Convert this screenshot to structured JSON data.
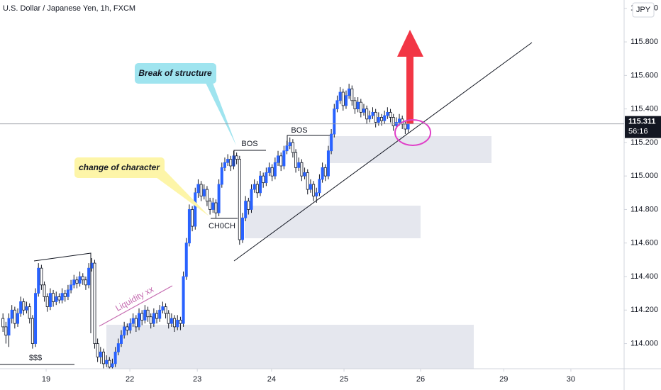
{
  "chart_data": {
    "type": "candlestick",
    "title": "U.S. Dollar / Japanese Yen, 1h, FXCM",
    "currency": "JPY",
    "up_color": "#2962ff",
    "down_color": "#ffffff",
    "ylim": [
      113.85,
      116.05
    ],
    "yticks": [
      {
        "value": 114.0,
        "label": "114.000"
      },
      {
        "value": 114.2,
        "label": "114.200"
      },
      {
        "value": 114.4,
        "label": "114.400"
      },
      {
        "value": 114.6,
        "label": "114.600"
      },
      {
        "value": 114.8,
        "label": "114.800"
      },
      {
        "value": 115.0,
        "label": "115.000"
      },
      {
        "value": 115.2,
        "label": "115.200"
      },
      {
        "value": 115.4,
        "label": "115.400"
      },
      {
        "value": 115.6,
        "label": "115.600"
      },
      {
        "value": 115.8,
        "label": "115.800"
      },
      {
        "value": 116.0,
        "label": "116.000"
      }
    ],
    "xlim": [
      -1,
      210
    ],
    "xticks": [
      {
        "value": 14.6,
        "label": "19"
      },
      {
        "value": 42.9,
        "label": "22"
      },
      {
        "value": 65.7,
        "label": "23"
      },
      {
        "value": 90.8,
        "label": "24"
      },
      {
        "value": 115.3,
        "label": "25"
      },
      {
        "value": 141.2,
        "label": "26"
      },
      {
        "value": 169.3,
        "label": "29"
      },
      {
        "value": 192.0,
        "label": "30"
      }
    ],
    "last_price": 115.311,
    "countdown": "56:16",
    "annotations": {
      "bos_callout": "Break of structure",
      "choch_callout": "change of character",
      "bos_1": "BOS",
      "bos_2": "BOS",
      "choch": "CH0CH",
      "liquidity": "Liquidity  xx",
      "equal_lows": "$$$"
    },
    "candles": [
      [
        114.15,
        114.18,
        114.07,
        114.1
      ],
      [
        114.1,
        114.13,
        114.0,
        114.05
      ],
      [
        114.05,
        114.18,
        113.98,
        114.15
      ],
      [
        114.15,
        114.23,
        114.12,
        114.2
      ],
      [
        114.2,
        114.22,
        114.09,
        114.12
      ],
      [
        114.12,
        114.21,
        114.1,
        114.18
      ],
      [
        114.18,
        114.28,
        114.16,
        114.25
      ],
      [
        114.25,
        114.27,
        114.17,
        114.2
      ],
      [
        114.2,
        114.25,
        114.18,
        114.22
      ],
      [
        114.22,
        114.24,
        114.12,
        114.15
      ],
      [
        114.15,
        114.17,
        113.97,
        114.0
      ],
      [
        114.0,
        114.33,
        113.98,
        114.3
      ],
      [
        114.3,
        114.48,
        114.28,
        114.45
      ],
      [
        114.45,
        114.47,
        114.32,
        114.35
      ],
      [
        114.35,
        114.37,
        114.25,
        114.28
      ],
      [
        114.28,
        114.3,
        114.19,
        114.22
      ],
      [
        114.22,
        114.33,
        114.2,
        114.3
      ],
      [
        114.3,
        114.32,
        114.22,
        114.25
      ],
      [
        114.25,
        114.31,
        114.23,
        114.28
      ],
      [
        114.28,
        114.3,
        114.24,
        114.26
      ],
      [
        114.26,
        114.33,
        114.24,
        114.3
      ],
      [
        114.3,
        114.32,
        114.25,
        114.28
      ],
      [
        114.28,
        114.35,
        114.26,
        114.32
      ],
      [
        114.32,
        114.38,
        114.3,
        114.35
      ],
      [
        114.35,
        114.41,
        114.33,
        114.38
      ],
      [
        114.38,
        114.4,
        114.33,
        114.36
      ],
      [
        114.36,
        114.43,
        114.34,
        114.4
      ],
      [
        114.4,
        114.42,
        114.35,
        114.38
      ],
      [
        114.38,
        114.4,
        114.32,
        114.35
      ],
      [
        114.35,
        114.48,
        114.33,
        114.45
      ],
      [
        114.45,
        114.51,
        114.43,
        114.48
      ],
      [
        114.48,
        114.5,
        113.97,
        114.0
      ],
      [
        114.0,
        114.03,
        113.89,
        113.92
      ],
      [
        113.92,
        113.98,
        113.88,
        113.95
      ],
      [
        113.95,
        113.97,
        113.85,
        113.88
      ],
      [
        113.88,
        113.93,
        113.86,
        113.9
      ],
      [
        113.9,
        113.92,
        113.85,
        113.86
      ],
      [
        113.86,
        113.91,
        113.85,
        113.88
      ],
      [
        113.88,
        113.98,
        113.86,
        113.95
      ],
      [
        113.95,
        114.03,
        113.93,
        114.0
      ],
      [
        114.0,
        114.08,
        113.98,
        114.05
      ],
      [
        114.05,
        114.13,
        114.03,
        114.1
      ],
      [
        114.1,
        114.12,
        114.05,
        114.08
      ],
      [
        114.08,
        114.15,
        114.06,
        114.12
      ],
      [
        114.12,
        114.18,
        114.1,
        114.15
      ],
      [
        114.15,
        114.17,
        114.07,
        114.1
      ],
      [
        114.1,
        114.21,
        114.08,
        114.18
      ],
      [
        114.18,
        114.2,
        114.11,
        114.14
      ],
      [
        114.14,
        114.23,
        114.12,
        114.2
      ],
      [
        114.2,
        114.22,
        114.13,
        114.16
      ],
      [
        114.16,
        114.18,
        114.09,
        114.12
      ],
      [
        114.12,
        114.21,
        114.1,
        114.18
      ],
      [
        114.18,
        114.2,
        114.12,
        114.15
      ],
      [
        114.15,
        114.23,
        114.13,
        114.2
      ],
      [
        114.2,
        114.25,
        114.18,
        114.22
      ],
      [
        114.22,
        114.24,
        114.15,
        114.18
      ],
      [
        114.18,
        114.2,
        114.09,
        114.12
      ],
      [
        114.12,
        114.18,
        114.1,
        114.15
      ],
      [
        114.15,
        114.17,
        114.07,
        114.1
      ],
      [
        114.1,
        114.17,
        114.08,
        114.14
      ],
      [
        114.14,
        114.16,
        114.08,
        114.12
      ],
      [
        114.12,
        114.43,
        114.1,
        114.4
      ],
      [
        114.4,
        114.63,
        114.38,
        114.6
      ],
      [
        114.6,
        114.83,
        114.58,
        114.8
      ],
      [
        114.8,
        114.82,
        114.67,
        114.7
      ],
      [
        114.7,
        114.93,
        114.68,
        114.9
      ],
      [
        114.9,
        114.98,
        114.87,
        114.95
      ],
      [
        114.95,
        114.97,
        114.85,
        114.88
      ],
      [
        114.88,
        114.95,
        114.86,
        114.92
      ],
      [
        114.92,
        114.94,
        114.82,
        114.85
      ],
      [
        114.85,
        114.87,
        114.77,
        114.8
      ],
      [
        114.8,
        114.87,
        114.78,
        114.84
      ],
      [
        114.84,
        114.86,
        114.75,
        114.78
      ],
      [
        114.78,
        114.98,
        114.76,
        114.95
      ],
      [
        114.95,
        115.08,
        114.93,
        115.05
      ],
      [
        115.05,
        115.11,
        115.03,
        115.08
      ],
      [
        115.08,
        115.13,
        115.06,
        115.1
      ],
      [
        115.1,
        115.12,
        115.03,
        115.06
      ],
      [
        115.06,
        115.15,
        115.04,
        115.12
      ],
      [
        115.12,
        115.14,
        115.07,
        115.1
      ],
      [
        115.1,
        115.12,
        114.59,
        114.62
      ],
      [
        114.62,
        114.78,
        114.6,
        114.75
      ],
      [
        114.75,
        114.88,
        114.73,
        114.85
      ],
      [
        114.85,
        114.87,
        114.77,
        114.8
      ],
      [
        114.8,
        114.95,
        114.78,
        114.92
      ],
      [
        114.92,
        114.98,
        114.9,
        114.95
      ],
      [
        114.95,
        114.97,
        114.87,
        114.9
      ],
      [
        114.9,
        115.03,
        114.88,
        115.0
      ],
      [
        115.0,
        115.02,
        114.93,
        114.96
      ],
      [
        114.96,
        115.05,
        114.94,
        115.02
      ],
      [
        115.02,
        115.08,
        115.0,
        115.05
      ],
      [
        115.05,
        115.07,
        114.97,
        115.0
      ],
      [
        115.0,
        115.11,
        114.98,
        115.08
      ],
      [
        115.08,
        115.15,
        115.06,
        115.12
      ],
      [
        115.12,
        115.14,
        115.03,
        115.06
      ],
      [
        115.06,
        115.18,
        115.04,
        115.15
      ],
      [
        115.15,
        115.21,
        115.13,
        115.18
      ],
      [
        115.18,
        115.23,
        115.16,
        115.2
      ],
      [
        115.2,
        115.22,
        115.11,
        115.14
      ],
      [
        115.14,
        115.16,
        115.02,
        115.05
      ],
      [
        115.05,
        115.11,
        115.03,
        115.08
      ],
      [
        115.08,
        115.1,
        114.97,
        115.0
      ],
      [
        115.0,
        115.05,
        114.98,
        115.02
      ],
      [
        115.02,
        115.04,
        114.89,
        114.92
      ],
      [
        114.92,
        114.98,
        114.9,
        114.95
      ],
      [
        114.95,
        114.97,
        114.85,
        114.88
      ],
      [
        114.88,
        114.93,
        114.84,
        114.9
      ],
      [
        114.9,
        115.01,
        114.88,
        114.98
      ],
      [
        114.98,
        115.08,
        114.96,
        115.05
      ],
      [
        115.05,
        115.07,
        114.97,
        115.0
      ],
      [
        115.0,
        115.18,
        114.98,
        115.15
      ],
      [
        115.15,
        115.28,
        115.13,
        115.25
      ],
      [
        115.25,
        115.43,
        115.23,
        115.4
      ],
      [
        115.4,
        115.48,
        115.38,
        115.45
      ],
      [
        115.45,
        115.53,
        115.43,
        115.5
      ],
      [
        115.5,
        115.52,
        115.39,
        115.42
      ],
      [
        115.42,
        115.51,
        115.4,
        115.48
      ],
      [
        115.48,
        115.55,
        115.46,
        115.52
      ],
      [
        115.52,
        115.54,
        115.42,
        115.45
      ],
      [
        115.45,
        115.47,
        115.37,
        115.4
      ],
      [
        115.4,
        115.47,
        115.38,
        115.44
      ],
      [
        115.44,
        115.46,
        115.35,
        115.38
      ],
      [
        115.38,
        115.43,
        115.36,
        115.4
      ],
      [
        115.4,
        115.42,
        115.31,
        115.34
      ],
      [
        115.34,
        115.39,
        115.32,
        115.36
      ],
      [
        115.36,
        115.41,
        115.34,
        115.38
      ],
      [
        115.38,
        115.4,
        115.29,
        115.32
      ],
      [
        115.32,
        115.38,
        115.3,
        115.35
      ],
      [
        115.35,
        115.37,
        115.3,
        115.33
      ],
      [
        115.33,
        115.39,
        115.31,
        115.36
      ],
      [
        115.36,
        115.41,
        115.34,
        115.38
      ],
      [
        115.38,
        115.4,
        115.32,
        115.35
      ],
      [
        115.35,
        115.37,
        115.27,
        115.3
      ],
      [
        115.3,
        115.35,
        115.28,
        115.32
      ],
      [
        115.32,
        115.37,
        115.3,
        115.34
      ],
      [
        115.34,
        115.36,
        115.28,
        115.31
      ],
      [
        115.31,
        115.33,
        115.25,
        115.28
      ],
      [
        115.28,
        115.34,
        115.26,
        115.311
      ]
    ]
  }
}
